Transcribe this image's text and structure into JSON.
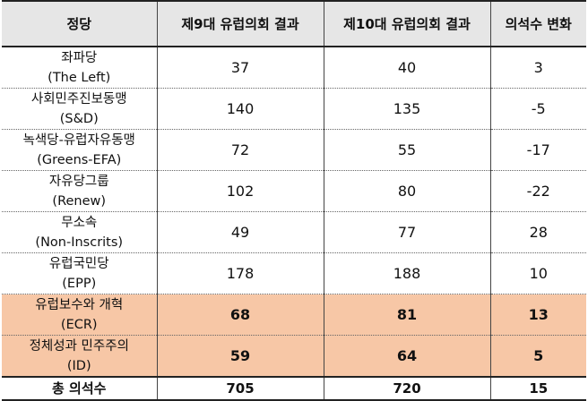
{
  "headers": [
    "정당",
    "제9대 유럽의회 결과",
    "제10대 유럽의회 결과",
    "의석수 변화"
  ],
  "rows": [
    {
      "name": "좌파당",
      "sub": "(The Left)",
      "v9": "37",
      "v10": "40",
      "change": "3"
    },
    {
      "name": "사회민주진보동맹",
      "sub": "(S&D)",
      "v9": "140",
      "v10": "135",
      "change": "-5"
    },
    {
      "name": "녹색당-유럽자유동맹",
      "sub": "(Greens-EFA)",
      "v9": "72",
      "v10": "55",
      "change": "-17"
    },
    {
      "name": "자유당그룹",
      "sub": "(Renew)",
      "v9": "102",
      "v10": "80",
      "change": "-22"
    },
    {
      "name": "무소속",
      "sub": "(Non-Inscrits)",
      "v9": "49",
      "v10": "77",
      "change": "28"
    },
    {
      "name": "유럽국민당",
      "sub": "(EPP)",
      "v9": "178",
      "v10": "188",
      "change": "10"
    },
    {
      "name": "유럽보수와 개혁",
      "sub": "(ECR)",
      "v9": "68",
      "v10": "81",
      "change": "13"
    },
    {
      "name": "정체성과 민주주의",
      "sub": "(ID)",
      "v9": "59",
      "v10": "64",
      "change": "5"
    }
  ],
  "total": {
    "label": "총 의석수",
    "v9": "705",
    "v10": "720",
    "change": "15"
  },
  "colors": {
    "header_bg": "#e6e6e6",
    "highlight_bg": "#f7c7a6"
  }
}
